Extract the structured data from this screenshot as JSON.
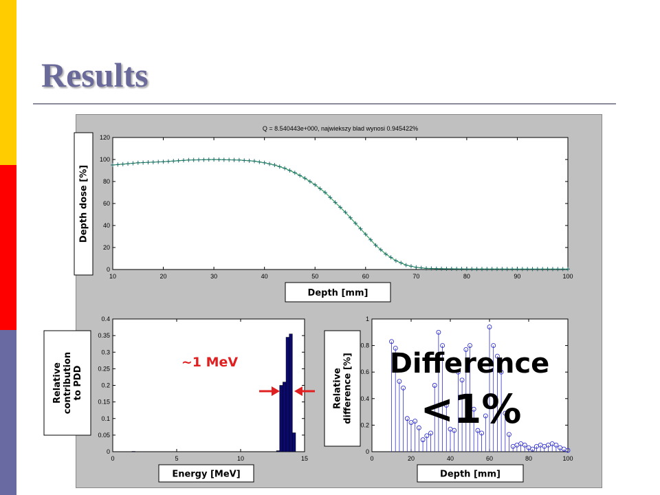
{
  "slide": {
    "title": "Results",
    "stripe_colors": [
      "#ffcc00",
      "#ff0000",
      "#6a6aa2"
    ]
  },
  "chart_data": [
    {
      "type": "line",
      "title": "Q = 8.540443e+000, najwiekszy blad wynosi 0.945422%",
      "xlabel": "Depth [mm]",
      "ylabel": "Depth dose [%]",
      "xlim": [
        10,
        100
      ],
      "ylim": [
        0,
        120
      ],
      "xticks": [
        10,
        20,
        30,
        40,
        50,
        60,
        70,
        80,
        90,
        100
      ],
      "yticks": [
        0,
        20,
        40,
        60,
        80,
        100,
        120
      ],
      "series": [
        {
          "marker": "+",
          "color": "#1a6a6a",
          "x": [
            10,
            15,
            20,
            25,
            30,
            35,
            38,
            40,
            42,
            44,
            46,
            48,
            50,
            52,
            54,
            56,
            58,
            60,
            62,
            64,
            66,
            68,
            70,
            72,
            75,
            80,
            90,
            100
          ],
          "y": [
            95,
            97,
            98,
            99.5,
            100,
            99.5,
            98.5,
            97,
            95,
            92,
            88,
            83,
            77,
            70,
            61,
            52,
            42,
            32,
            22,
            14,
            8,
            4,
            2,
            1,
            0.7,
            0.5,
            0.4,
            0.4
          ]
        }
      ]
    },
    {
      "type": "bar",
      "xlabel": "Energy [MeV]",
      "ylabel": "Relative contribution to PDD",
      "xlim": [
        0,
        15
      ],
      "ylim": [
        0,
        0.4
      ],
      "xticks": [
        0,
        5,
        10,
        15
      ],
      "yticks": [
        0,
        0.05,
        0.1,
        0.15,
        0.2,
        0.25,
        0.3,
        0.35,
        0.4
      ],
      "bar_width": 0.25,
      "color": "#0a0a6e",
      "x": [
        1.5,
        12.8,
        13.05,
        13.3,
        13.55,
        13.8,
        14.05
      ],
      "values": [
        0.001,
        0.003,
        0.2,
        0.21,
        0.345,
        0.355,
        0.057
      ],
      "annotation": "~1 MeV",
      "annotation_color": "#e02020",
      "arrow_color": "#e02020"
    },
    {
      "type": "stem",
      "xlabel": "Depth [mm]",
      "ylabel": "Relative difference [%]",
      "xlim": [
        0,
        100
      ],
      "ylim": [
        0,
        1
      ],
      "xticks": [
        0,
        20,
        40,
        60,
        80,
        100
      ],
      "yticks": [
        0,
        0.2,
        0.4,
        0.6,
        0.8,
        1
      ],
      "color": "#3030d0",
      "x": [
        10,
        12,
        14,
        16,
        18,
        20,
        22,
        24,
        26,
        28,
        30,
        32,
        34,
        36,
        38,
        40,
        42,
        44,
        46,
        48,
        50,
        52,
        54,
        56,
        58,
        60,
        62,
        64,
        66,
        68,
        70,
        72,
        74,
        76,
        78,
        80,
        82,
        84,
        86,
        88,
        90,
        92,
        94,
        96,
        98,
        100
      ],
      "y": [
        0.83,
        0.78,
        0.53,
        0.48,
        0.25,
        0.22,
        0.23,
        0.18,
        0.09,
        0.12,
        0.14,
        0.5,
        0.9,
        0.8,
        0.35,
        0.17,
        0.16,
        0.6,
        0.54,
        0.77,
        0.8,
        0.32,
        0.16,
        0.14,
        0.27,
        0.94,
        0.8,
        0.72,
        0.6,
        0.29,
        0.13,
        0.04,
        0.05,
        0.06,
        0.05,
        0.03,
        0.02,
        0.04,
        0.05,
        0.04,
        0.05,
        0.06,
        0.05,
        0.03,
        0.02,
        0.01
      ],
      "overlay_line1": "Difference",
      "overlay_line2": "<1%"
    }
  ]
}
